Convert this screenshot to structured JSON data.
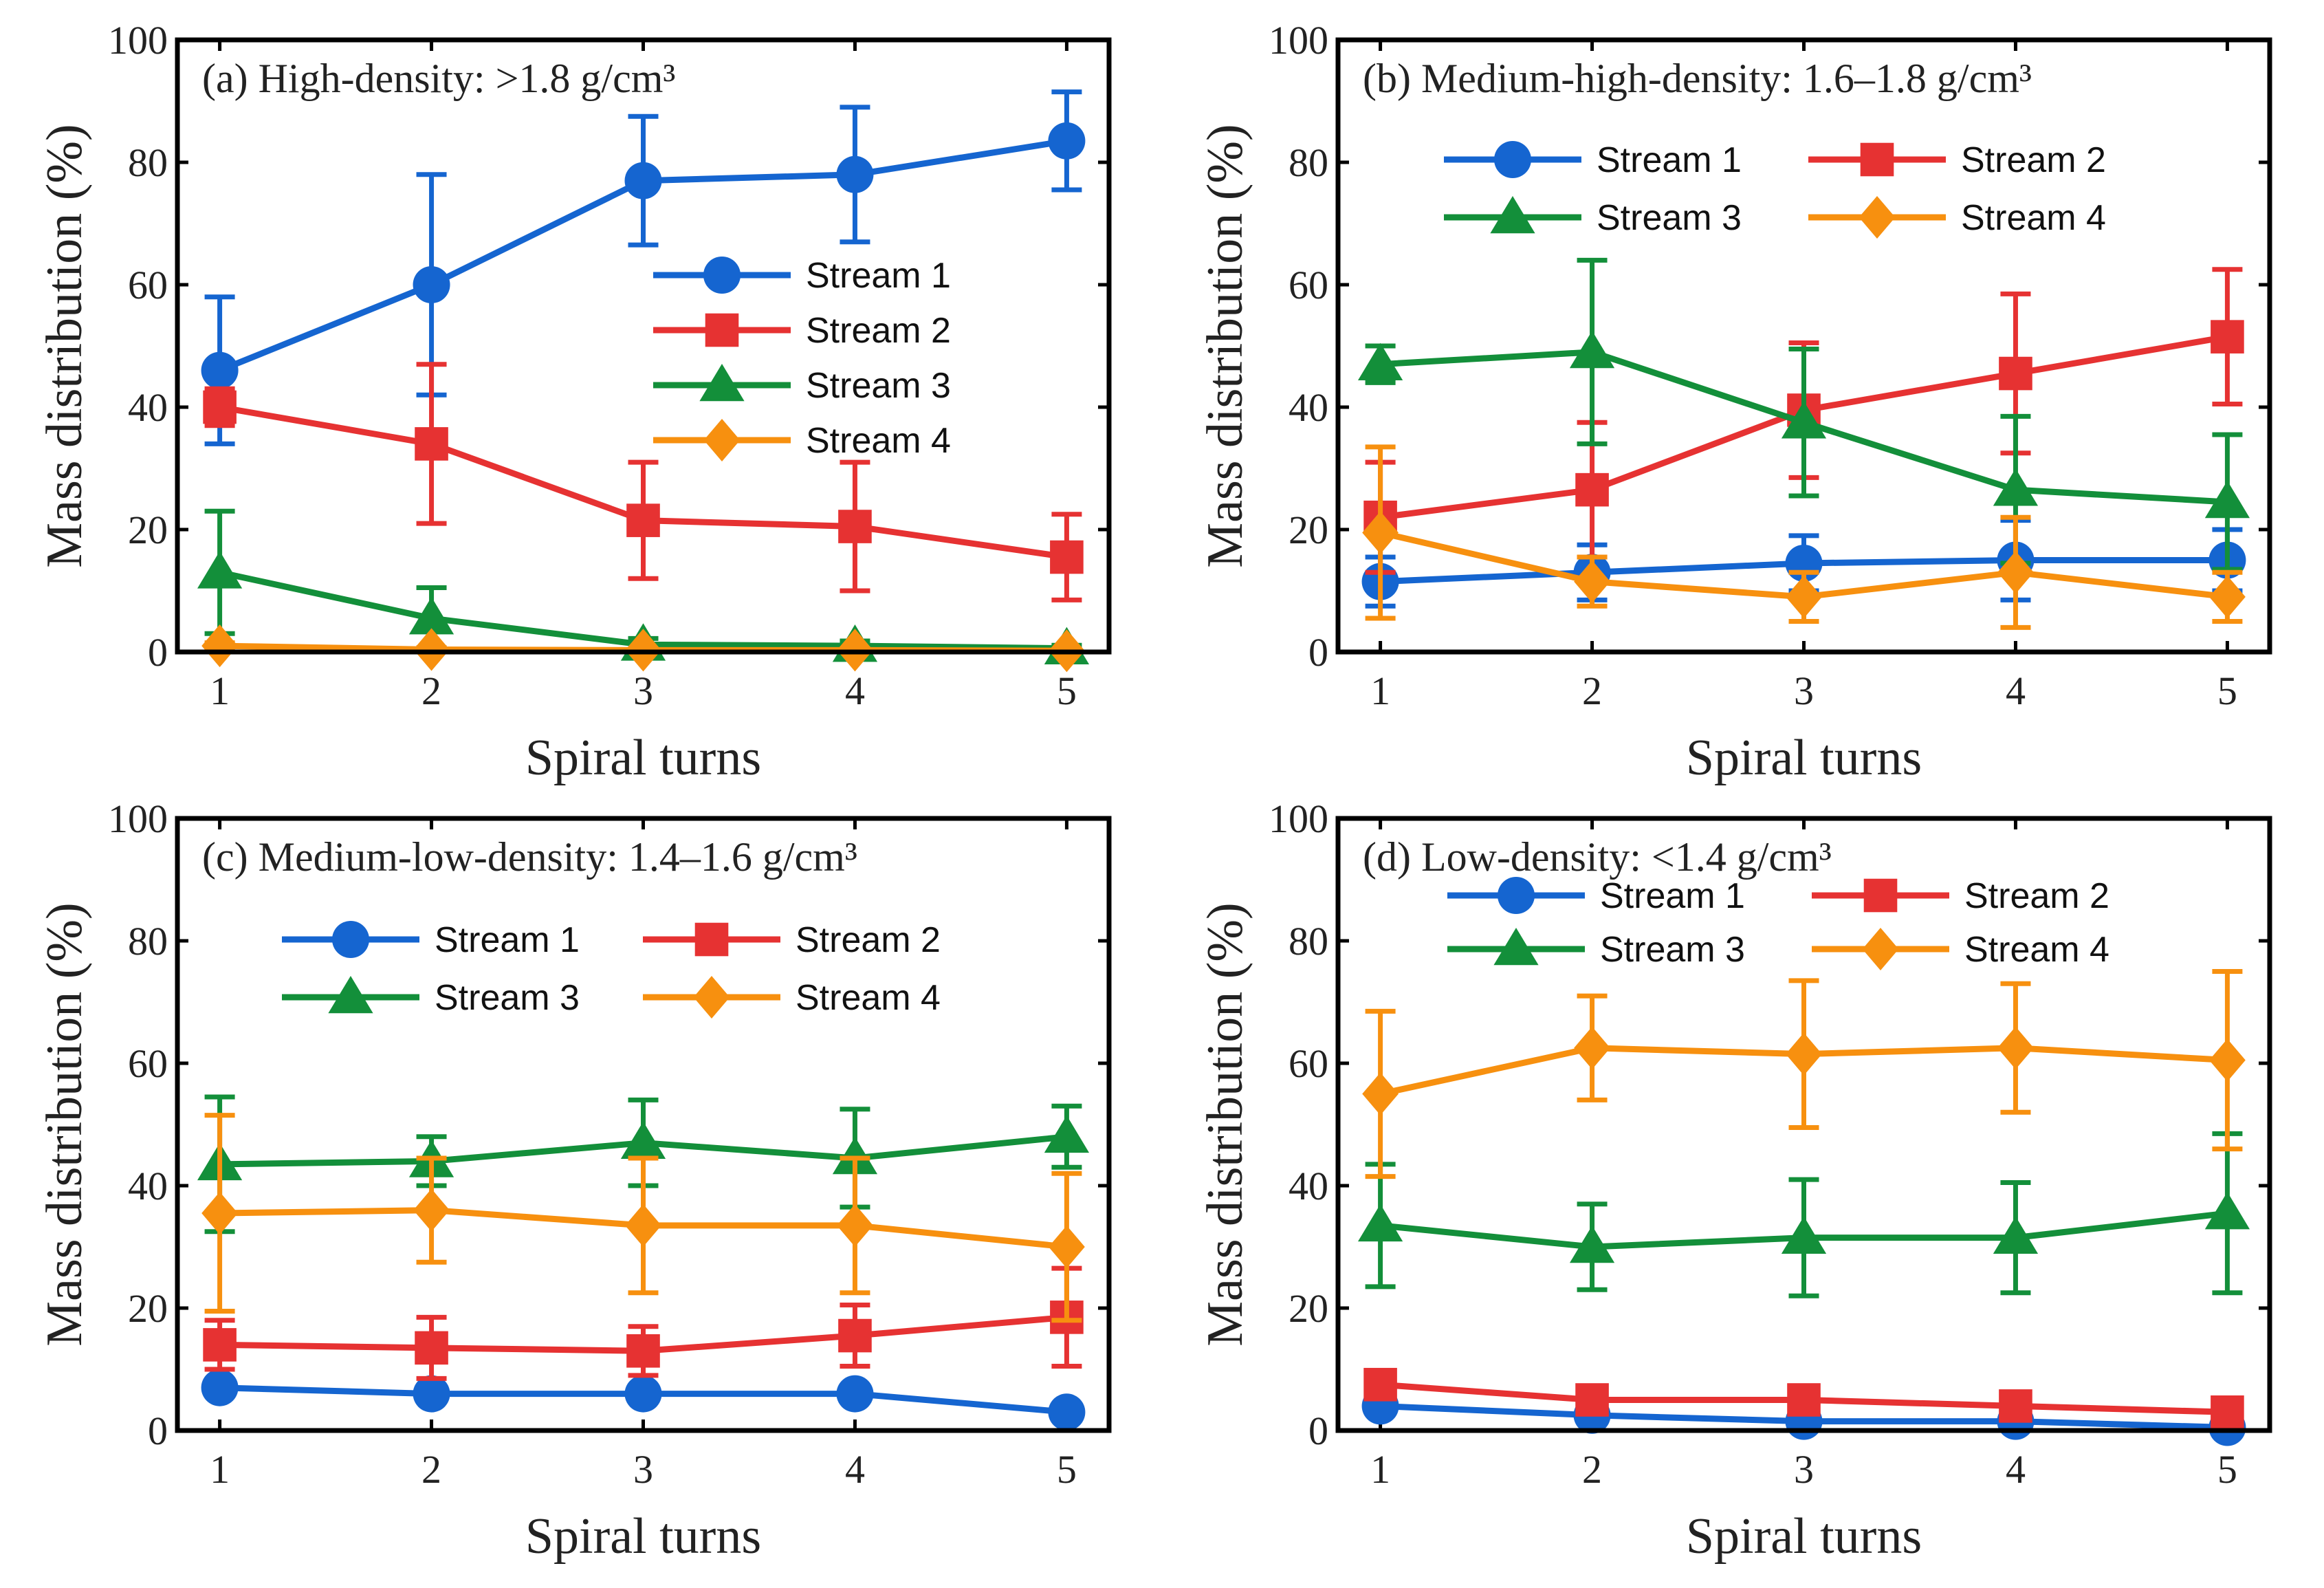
{
  "colors": {
    "Stream 1": "#1565D0",
    "Stream 2": "#E63232",
    "Stream 3": "#138F3A",
    "Stream 4": "#F7900F",
    "axis": "#000000",
    "text": "#222222"
  },
  "markers": {
    "Stream 1": "circle",
    "Stream 2": "square",
    "Stream 3": "triangle",
    "Stream 4": "diamond"
  },
  "chart_data": [
    {
      "type": "line",
      "title": "(a) High-density: >1.8 g/cm³",
      "xlabel": "Spiral turns",
      "ylabel": "Mass distribution (%)",
      "x": [
        1,
        2,
        3,
        4,
        5
      ],
      "xlim": [
        0.8,
        5.2
      ],
      "ylim": [
        0,
        100
      ],
      "xticks": [
        1,
        2,
        3,
        4,
        5
      ],
      "yticks": [
        0,
        20,
        40,
        60,
        80,
        100
      ],
      "legend_position": "right-middle",
      "legend_columns": 1,
      "series": [
        {
          "name": "Stream 1",
          "values": [
            46,
            60,
            77,
            78,
            83.5
          ],
          "errors": [
            12,
            18,
            10.5,
            11,
            8
          ]
        },
        {
          "name": "Stream 2",
          "values": [
            40,
            34,
            21.5,
            20.5,
            15.5
          ],
          "errors": [
            3,
            13,
            9.5,
            10.5,
            7
          ]
        },
        {
          "name": "Stream 3",
          "values": [
            13,
            5.5,
            1.2,
            1,
            0.6
          ],
          "errors": [
            10,
            5,
            1,
            0.8,
            0.5
          ]
        },
        {
          "name": "Stream 4",
          "values": [
            1,
            0.4,
            0.3,
            0.3,
            0.2
          ],
          "errors": [
            0.5,
            0.3,
            0.2,
            0.2,
            0.2
          ]
        }
      ]
    },
    {
      "type": "line",
      "title": "(b) Medium-high-density: 1.6–1.8 g/cm³",
      "xlabel": "Spiral turns",
      "ylabel": "Mass distribution (%)",
      "x": [
        1,
        2,
        3,
        4,
        5
      ],
      "xlim": [
        0.8,
        5.2
      ],
      "ylim": [
        0,
        100
      ],
      "xticks": [
        1,
        2,
        3,
        4,
        5
      ],
      "yticks": [
        0,
        20,
        40,
        60,
        80,
        100
      ],
      "legend_position": "top",
      "legend_columns": 2,
      "series": [
        {
          "name": "Stream 1",
          "values": [
            11.5,
            13,
            14.5,
            15,
            15
          ],
          "errors": [
            4,
            4.5,
            4.5,
            6.5,
            5
          ]
        },
        {
          "name": "Stream 2",
          "values": [
            22,
            26.5,
            39.5,
            45.5,
            51.5
          ],
          "errors": [
            9,
            11,
            11,
            13,
            11
          ]
        },
        {
          "name": "Stream 3",
          "values": [
            47,
            49,
            37.5,
            26.5,
            24.5
          ],
          "errors": [
            3,
            15,
            12,
            12,
            11
          ]
        },
        {
          "name": "Stream 4",
          "values": [
            19.5,
            11.5,
            9,
            13,
            9
          ],
          "errors": [
            14,
            4,
            4,
            9,
            4
          ]
        }
      ]
    },
    {
      "type": "line",
      "title": "(c) Medium-low-density: 1.4–1.6 g/cm³",
      "xlabel": "Spiral turns",
      "ylabel": "Mass distribution (%)",
      "x": [
        1,
        2,
        3,
        4,
        5
      ],
      "xlim": [
        0.8,
        5.2
      ],
      "ylim": [
        0,
        100
      ],
      "xticks": [
        1,
        2,
        3,
        4,
        5
      ],
      "yticks": [
        0,
        20,
        40,
        60,
        80,
        100
      ],
      "legend_position": "top",
      "legend_columns": 2,
      "series": [
        {
          "name": "Stream 1",
          "values": [
            7,
            6,
            6,
            6,
            3
          ],
          "errors": [
            1,
            1,
            1,
            1,
            0.5
          ]
        },
        {
          "name": "Stream 2",
          "values": [
            14,
            13.5,
            13,
            15.5,
            18.5
          ],
          "errors": [
            4,
            5,
            4,
            5,
            8
          ]
        },
        {
          "name": "Stream 3",
          "values": [
            43.5,
            44,
            47,
            44.5,
            48
          ],
          "errors": [
            11,
            4,
            7,
            8,
            5
          ]
        },
        {
          "name": "Stream 4",
          "values": [
            35.5,
            36,
            33.5,
            33.5,
            30
          ],
          "errors": [
            16,
            8.5,
            11,
            11,
            12
          ]
        }
      ]
    },
    {
      "type": "line",
      "title": "(d) Low-density: <1.4 g/cm³",
      "xlabel": "Spiral turns",
      "ylabel": "Mass distribution (%)",
      "x": [
        1,
        2,
        3,
        4,
        5
      ],
      "xlim": [
        0.8,
        5.2
      ],
      "ylim": [
        0,
        100
      ],
      "xticks": [
        1,
        2,
        3,
        4,
        5
      ],
      "yticks": [
        0,
        20,
        40,
        60,
        80,
        100
      ],
      "legend_position": "top",
      "legend_columns": 2,
      "series": [
        {
          "name": "Stream 1",
          "values": [
            4,
            2.5,
            1.5,
            1.5,
            0.5
          ],
          "errors": [
            0.5,
            0.5,
            0.5,
            0.5,
            0.3
          ]
        },
        {
          "name": "Stream 2",
          "values": [
            7.5,
            5,
            5,
            4,
            3
          ],
          "errors": [
            1,
            0.5,
            0.5,
            0.5,
            0.5
          ]
        },
        {
          "name": "Stream 3",
          "values": [
            33.5,
            30,
            31.5,
            31.5,
            35.5
          ],
          "errors": [
            10,
            7,
            9.5,
            9,
            13
          ]
        },
        {
          "name": "Stream 4",
          "values": [
            55,
            62.5,
            61.5,
            62.5,
            60.5
          ],
          "errors": [
            13.5,
            8.5,
            12,
            10.5,
            14.5
          ]
        }
      ]
    }
  ]
}
